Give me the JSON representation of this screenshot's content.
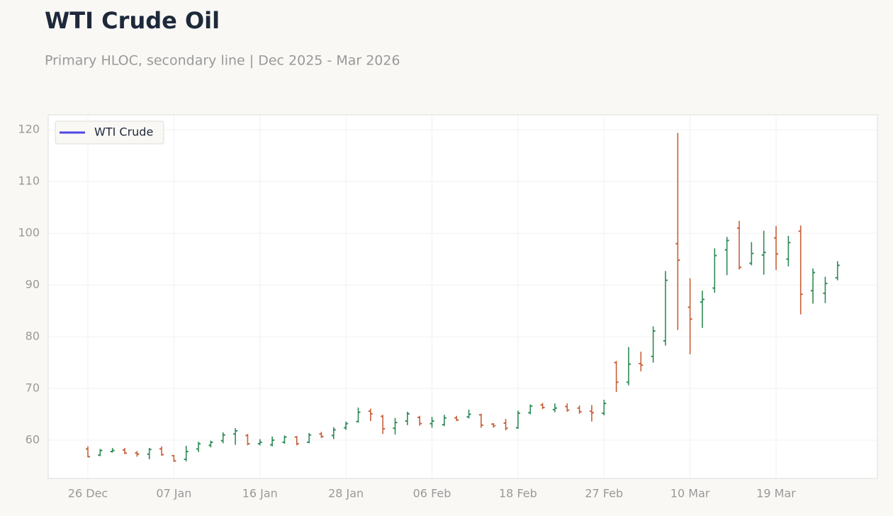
{
  "chart_data": {
    "type": "ohlc",
    "title": "WTI Crude Oil",
    "subtitle": "Primary HLOC, secondary line | Dec 2025 - Mar 2026",
    "categories": [
      "26 Dec",
      null,
      null,
      null,
      null,
      null,
      null,
      "07 Jan",
      null,
      null,
      null,
      null,
      null,
      null,
      "16 Jan",
      null,
      null,
      null,
      null,
      null,
      null,
      "28 Jan",
      null,
      null,
      null,
      null,
      null,
      null,
      "06 Feb",
      null,
      null,
      null,
      null,
      null,
      null,
      "18 Feb",
      null,
      null,
      null,
      null,
      null,
      null,
      "27 Feb",
      null,
      null,
      null,
      null,
      null,
      null,
      "10 Mar",
      null,
      null,
      null,
      null,
      null,
      null,
      "19 Mar",
      null,
      null,
      null,
      null,
      null
    ],
    "series": [
      {
        "name": "WTI Crude",
        "color": "#4f46e5",
        "open": [
          58.3,
          57.1,
          57.8,
          58.1,
          57.5,
          57.3,
          58.3,
          57.0,
          56.3,
          58.3,
          59.0,
          59.9,
          61.2,
          60.9,
          59.3,
          59.1,
          59.6,
          60.6,
          59.6,
          61.2,
          60.9,
          62.4,
          63.6,
          65.6,
          64.6,
          62.3,
          63.7,
          64.4,
          63.2,
          63.0,
          64.3,
          64.5,
          64.9,
          63.1,
          63.3,
          62.4,
          65.3,
          66.8,
          65.9,
          66.5,
          66.2,
          65.6,
          65.2,
          75.0,
          71.2,
          74.8,
          76.2,
          79.2,
          98.0,
          85.7,
          86.7,
          89.4,
          96.8,
          101.0,
          94.2,
          95.8,
          99.1,
          95.0,
          100.4,
          88.9,
          88.4,
          91.4
        ],
        "high": [
          58.8,
          58.3,
          58.5,
          58.5,
          57.9,
          58.5,
          58.8,
          57.1,
          58.9,
          59.7,
          59.9,
          61.5,
          62.3,
          61.2,
          60.2,
          60.7,
          60.9,
          60.8,
          61.4,
          61.6,
          62.5,
          63.6,
          66.3,
          66.1,
          64.9,
          64.3,
          65.5,
          64.7,
          64.5,
          64.9,
          64.7,
          65.9,
          65.1,
          63.3,
          64.1,
          65.7,
          66.9,
          67.2,
          67.1,
          67.1,
          66.7,
          66.8,
          67.8,
          75.3,
          78.0,
          77.1,
          82.0,
          92.7,
          119.4,
          91.3,
          88.9,
          97.1,
          99.3,
          102.4,
          98.3,
          100.5,
          101.4,
          99.5,
          101.5,
          93.2,
          91.6,
          94.6
        ],
        "low": [
          56.7,
          56.9,
          57.6,
          57.3,
          56.8,
          56.3,
          57.0,
          55.8,
          55.9,
          57.7,
          58.6,
          59.4,
          59.1,
          59.0,
          59.0,
          58.8,
          59.3,
          59.0,
          59.4,
          60.4,
          60.2,
          62.0,
          63.4,
          63.7,
          61.2,
          61.1,
          62.9,
          62.8,
          62.4,
          62.7,
          63.7,
          64.2,
          62.4,
          62.4,
          61.9,
          62.2,
          65.0,
          66.0,
          65.4,
          65.5,
          65.1,
          63.6,
          64.8,
          69.3,
          70.6,
          73.3,
          75.0,
          78.3,
          81.3,
          76.6,
          81.7,
          88.5,
          91.9,
          93.0,
          93.8,
          92.0,
          92.9,
          93.6,
          84.3,
          86.4,
          86.5,
          90.9
        ],
        "close": [
          56.8,
          58.0,
          58.0,
          57.5,
          57.3,
          58.2,
          57.2,
          56.0,
          57.8,
          59.3,
          59.6,
          61.0,
          61.8,
          59.3,
          59.6,
          60.0,
          60.6,
          59.3,
          61.0,
          60.7,
          62.0,
          63.2,
          65.4,
          65.1,
          62.2,
          63.4,
          65.1,
          63.2,
          63.7,
          64.3,
          63.9,
          65.0,
          62.9,
          62.8,
          62.3,
          65.2,
          66.6,
          66.3,
          66.2,
          65.8,
          65.5,
          65.3,
          67.1,
          71.2,
          74.7,
          74.5,
          81.1,
          90.9,
          94.8,
          83.4,
          87.2,
          95.7,
          98.6,
          93.4,
          96.1,
          96.3,
          96.0,
          98.2,
          88.2,
          92.4,
          90.3,
          93.8
        ]
      }
    ],
    "up_color": "#2e8b57",
    "down_color": "#c8603a",
    "ylim": [
      52.6,
      122.9
    ],
    "yticks": [
      60,
      70,
      80,
      90,
      100,
      110,
      120
    ],
    "grid": true,
    "legend": "upper left"
  }
}
